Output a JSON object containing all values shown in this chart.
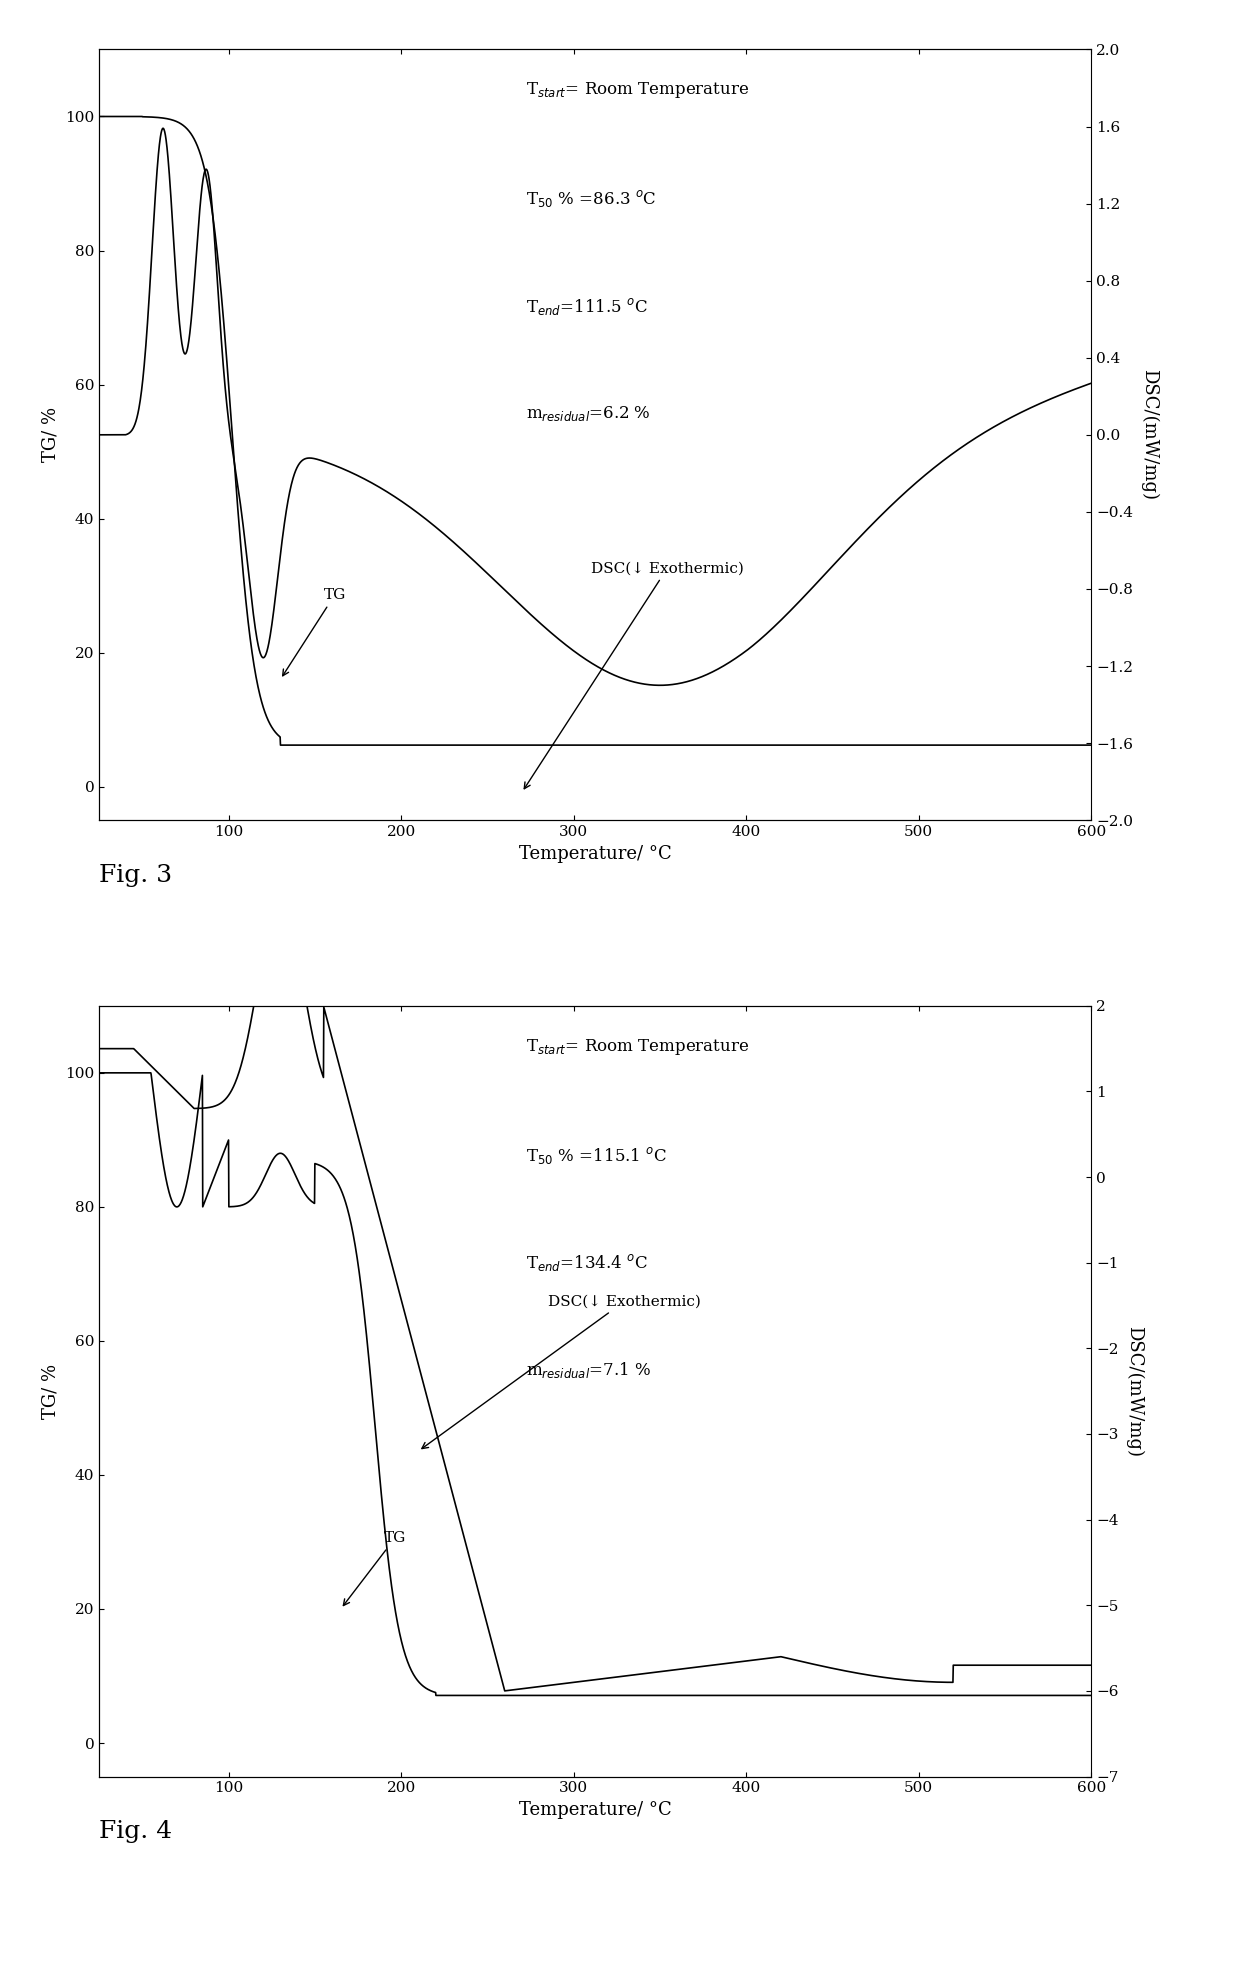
{
  "fig3": {
    "xlabel": "Temperature/ °C",
    "ylabel_left": "TG/ %",
    "ylabel_right": "DSC/(mW/mg)",
    "xlim": [
      25,
      600
    ],
    "ylim_tg": [
      -5,
      110
    ],
    "ylim_dsc": [
      -2.0,
      2.0
    ],
    "yticks_tg": [
      0,
      20,
      40,
      60,
      80,
      100
    ],
    "yticks_dsc": [
      -2.0,
      -1.6,
      -1.2,
      -0.8,
      -0.4,
      0.0,
      0.4,
      0.8,
      1.2,
      1.6,
      2.0
    ],
    "xticks": [
      100,
      200,
      300,
      400,
      500,
      600
    ],
    "annotation_lines": [
      "T$_{start}$= Room Temperature",
      "T$_{50}$ % =86.3 $^o$C",
      "T$_{end}$=111.5 $^o$C",
      "m$_{residual}$=6.2 %"
    ],
    "label_tg": "TG",
    "label_dsc": "DSC(↓ Exothermic)"
  },
  "fig4": {
    "xlabel": "Temperature/ °C",
    "ylabel_left": "TG/ %",
    "ylabel_right": "DSC/(mW/mg)",
    "xlim": [
      25,
      600
    ],
    "ylim_tg": [
      -5,
      110
    ],
    "ylim_dsc": [
      -7.0,
      2.0
    ],
    "yticks_tg": [
      0,
      20,
      40,
      60,
      80,
      100
    ],
    "yticks_dsc": [
      -7,
      -6,
      -5,
      -4,
      -3,
      -2,
      -1,
      0,
      1,
      2
    ],
    "xticks": [
      100,
      200,
      300,
      400,
      500,
      600
    ],
    "annotation_lines": [
      "T$_{start}$= Room Temperature",
      "T$_{50}$ % =115.1 $^o$C",
      "T$_{end}$=134.4 $^o$C",
      "m$_{residual}$=7.1 %"
    ],
    "label_tg": "TG",
    "label_dsc": "DSC(↓ Exothermic)"
  },
  "background_color": "#ffffff",
  "line_color": "#000000"
}
